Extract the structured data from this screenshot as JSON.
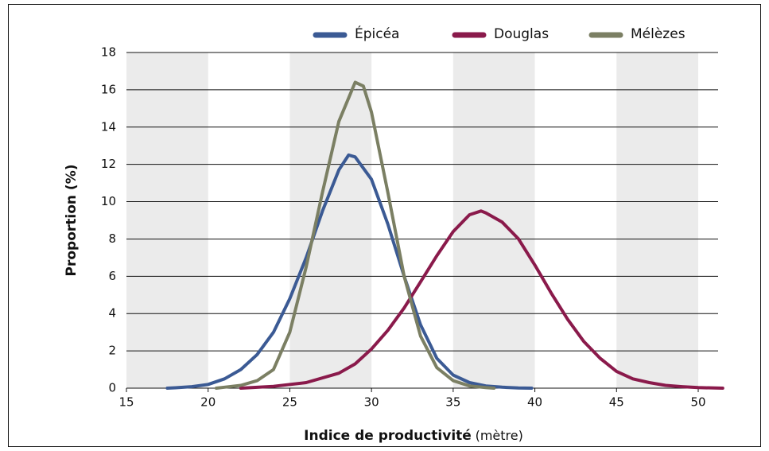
{
  "chart_data": {
    "type": "line",
    "x_label": "Indice de productivité",
    "x_label_unit": "(mètre)",
    "y_label": "Proportion (%)",
    "xlim": [
      15,
      51.5
    ],
    "xticks": [
      15,
      20,
      25,
      30,
      35,
      40,
      45,
      50
    ],
    "ylim": [
      0,
      18
    ],
    "yticks": [
      0,
      2,
      4,
      6,
      8,
      10,
      12,
      14,
      16,
      18
    ],
    "grid": true,
    "shaded_bands": true,
    "legend": "top",
    "series": [
      {
        "name": "Épicéa",
        "color": "#3b5a94",
        "x": [
          17.5,
          18,
          19,
          20,
          21,
          22,
          23,
          24,
          25,
          26,
          27,
          28,
          28.6,
          29,
          30,
          31,
          32,
          33,
          34,
          35,
          36,
          37,
          38,
          39,
          39.8
        ],
        "values": [
          0,
          0.02,
          0.08,
          0.2,
          0.5,
          1.0,
          1.8,
          3.0,
          4.8,
          7.0,
          9.5,
          11.7,
          12.5,
          12.4,
          11.2,
          8.8,
          6.0,
          3.4,
          1.6,
          0.7,
          0.3,
          0.12,
          0.05,
          0.01,
          0
        ]
      },
      {
        "name": "Douglas",
        "color": "#8a1a4b",
        "x": [
          22,
          24,
          26,
          28,
          29,
          30,
          31,
          32,
          33,
          34,
          35,
          36,
          36.7,
          37,
          38,
          39,
          40,
          41,
          42,
          43,
          44,
          45,
          46,
          47,
          48,
          49,
          50,
          51.5
        ],
        "values": [
          0,
          0.1,
          0.3,
          0.8,
          1.3,
          2.1,
          3.1,
          4.3,
          5.7,
          7.1,
          8.4,
          9.3,
          9.5,
          9.4,
          8.9,
          8.0,
          6.6,
          5.1,
          3.7,
          2.5,
          1.6,
          0.9,
          0.5,
          0.3,
          0.15,
          0.08,
          0.03,
          0
        ]
      },
      {
        "name": "Mélèzes",
        "color": "#7b7f63",
        "x": [
          20.5,
          21,
          22,
          23,
          24,
          25,
          26,
          27,
          28,
          29,
          29.5,
          30,
          31,
          32,
          33,
          34,
          35,
          36,
          37,
          37.5
        ],
        "values": [
          0,
          0.05,
          0.15,
          0.4,
          1.0,
          3.0,
          6.5,
          10.5,
          14.3,
          16.4,
          16.2,
          14.8,
          10.5,
          6.0,
          2.8,
          1.1,
          0.4,
          0.12,
          0.03,
          0
        ]
      }
    ]
  }
}
